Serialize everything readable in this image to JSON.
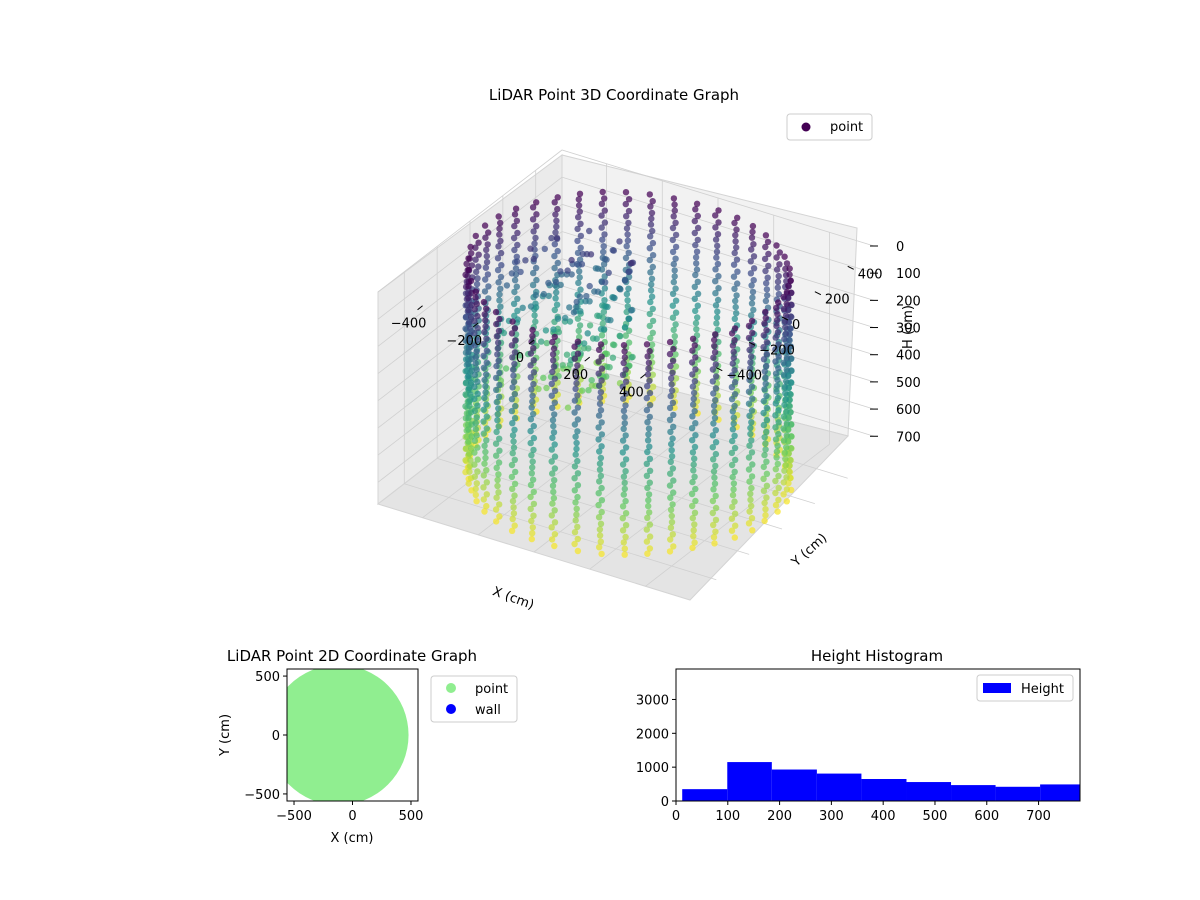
{
  "chart_data": [
    {
      "type": "scatter",
      "title": "LiDAR Point 3D Coordinate Graph",
      "xlabel": "X (cm)",
      "ylabel": "Y (cm)",
      "zlabel": "H (cm)",
      "xlim": [
        -560,
        560
      ],
      "ylim": [
        -560,
        560
      ],
      "zlim": [
        0,
        780
      ],
      "z_inverted": true,
      "xticks": [
        -400,
        -200,
        0,
        200,
        400
      ],
      "yticks": [
        -400,
        -200,
        0,
        200,
        400
      ],
      "zticks": [
        0,
        100,
        200,
        300,
        400,
        500,
        600,
        700
      ],
      "legend": {
        "entries": [
          "point"
        ],
        "position": "top-right"
      },
      "colormap": [
        "#440154",
        "#3b528b",
        "#21918c",
        "#5ec962",
        "#fde725"
      ],
      "series": [
        {
          "name": "point",
          "shape": "cylindrical wall",
          "radius": 500,
          "h_range": [
            0,
            780
          ],
          "color_by": "height"
        }
      ]
    },
    {
      "type": "scatter",
      "title": "LiDAR Point 2D Coordinate Graph",
      "xlabel": "X (cm)",
      "ylabel": "Y (cm)",
      "xlim": [
        -560,
        560
      ],
      "ylim": [
        -560,
        560
      ],
      "xticks": [
        -500,
        0,
        500
      ],
      "yticks": [
        -500,
        0,
        500
      ],
      "legend": {
        "entries": [
          "point",
          "wall"
        ],
        "position": "outside-right"
      },
      "series": [
        {
          "name": "point",
          "color": "#90ee90",
          "shape": "filled disc",
          "radius": 560
        },
        {
          "name": "wall",
          "color": "#0000ff"
        }
      ]
    },
    {
      "type": "bar",
      "title": "Height Histogram",
      "xlim": [
        0,
        780
      ],
      "ylim": [
        0,
        3900
      ],
      "xticks": [
        0,
        100,
        200,
        300,
        400,
        500,
        600,
        700
      ],
      "yticks": [
        0,
        1000,
        2000,
        3000
      ],
      "legend": {
        "entries": [
          "Height"
        ],
        "position": "top-right"
      },
      "color": "#0000ff",
      "bins": [
        {
          "x0": 12,
          "x1": 99,
          "count": 350
        },
        {
          "x0": 99,
          "x1": 185,
          "count": 1150
        },
        {
          "x0": 185,
          "x1": 272,
          "count": 930
        },
        {
          "x0": 272,
          "x1": 358,
          "count": 810
        },
        {
          "x0": 358,
          "x1": 445,
          "count": 650
        },
        {
          "x0": 445,
          "x1": 531,
          "count": 560
        },
        {
          "x0": 531,
          "x1": 617,
          "count": 470
        },
        {
          "x0": 617,
          "x1": 703,
          "count": 420
        },
        {
          "x0": 703,
          "x1": 780,
          "count": 490
        }
      ]
    }
  ]
}
